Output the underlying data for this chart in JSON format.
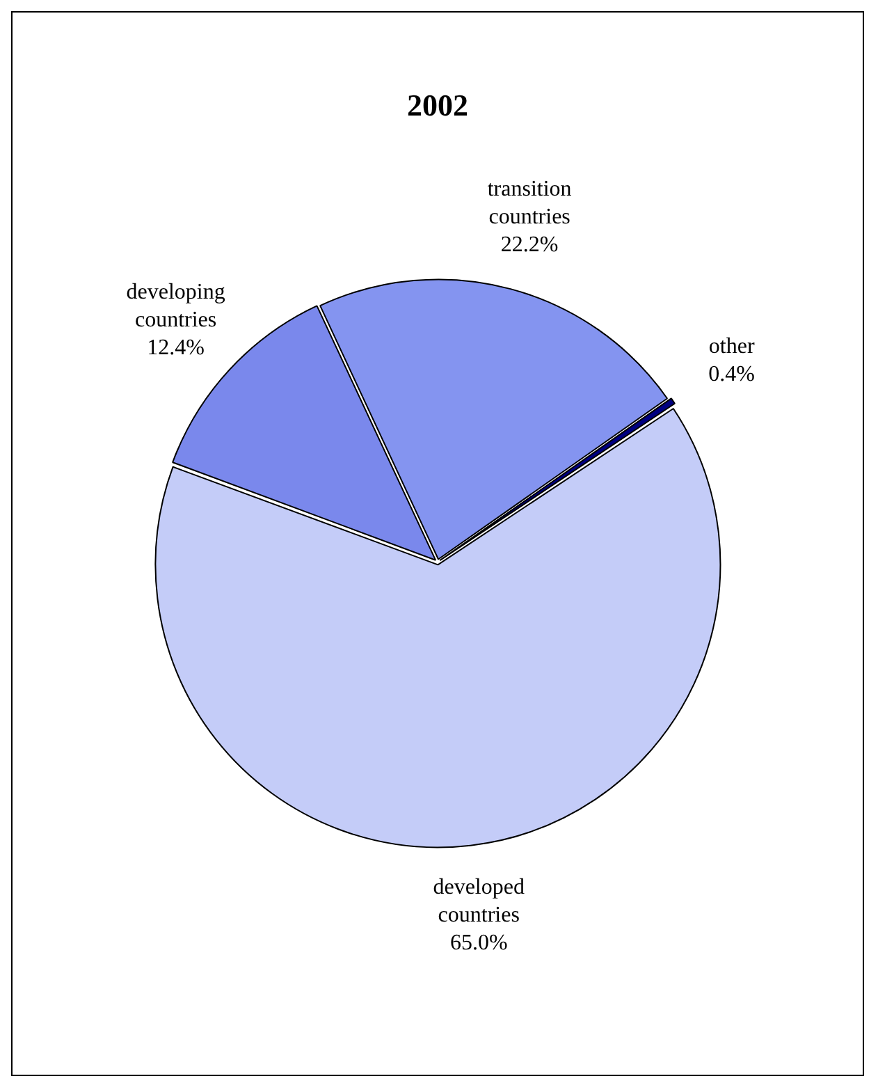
{
  "chart_data": {
    "type": "pie",
    "title": "2002",
    "categories": [
      "transition countries",
      "other",
      "developed countries",
      "developing countries"
    ],
    "values": [
      22.2,
      0.4,
      65.0,
      12.4
    ],
    "colors": [
      "#8494f0",
      "#000080",
      "#c4ccf8",
      "#7a88ec"
    ],
    "value_labels": [
      "22.2%",
      "0.4%",
      "65.0%",
      "12.4%"
    ],
    "legend": false
  }
}
